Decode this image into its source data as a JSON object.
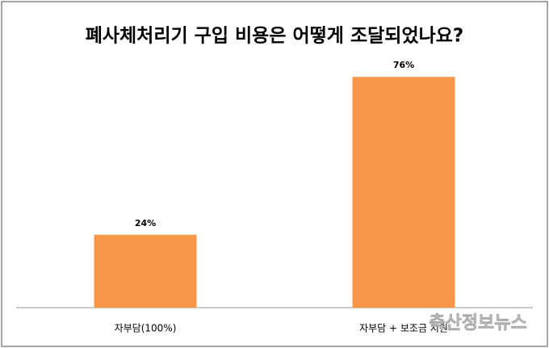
{
  "chart_data": {
    "type": "bar",
    "title": "폐사체처리기 구입 비용은 어떻게 조달되었나요?",
    "categories": [
      "자부담(100%)",
      "자부담 + 보조금 지원"
    ],
    "values": [
      24,
      76
    ],
    "value_labels": [
      "24%",
      "76%"
    ],
    "color": "#f79646",
    "watermark": "축산정보뉴스"
  }
}
